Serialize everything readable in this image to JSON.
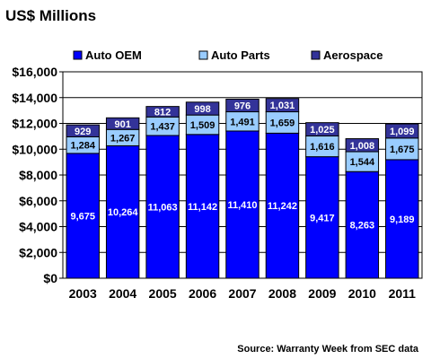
{
  "chart_data": {
    "type": "bar",
    "stacked": true,
    "title": "US$ Millions",
    "source": "Source: Warranty Week from SEC data",
    "categories": [
      "2003",
      "2004",
      "2005",
      "2006",
      "2007",
      "2008",
      "2009",
      "2010",
      "2011"
    ],
    "series": [
      {
        "name": "Auto OEM",
        "color": "#0000ff",
        "label_color": "#ffffff",
        "values": [
          9675,
          10264,
          11063,
          11142,
          11410,
          11242,
          9417,
          8263,
          9189
        ],
        "labels": [
          "9,675",
          "10,264",
          "11,063",
          "11,142",
          "11,410",
          "11,242",
          "9,417",
          "8,263",
          "9,189"
        ]
      },
      {
        "name": "Auto Parts",
        "color": "#99ccff",
        "label_color": "#000000",
        "values": [
          1284,
          1267,
          1437,
          1509,
          1491,
          1659,
          1616,
          1544,
          1675
        ],
        "labels": [
          "1,284",
          "1,267",
          "1,437",
          "1,509",
          "1,491",
          "1,659",
          "1,616",
          "1,544",
          "1,675"
        ]
      },
      {
        "name": "Aerospace",
        "color": "#333399",
        "label_color": "#ffffff",
        "values": [
          929,
          901,
          812,
          998,
          976,
          1031,
          1025,
          1008,
          1099
        ],
        "labels": [
          "929",
          "901",
          "812",
          "998",
          "976",
          "1,031",
          "1,025",
          "1,008",
          "1,099"
        ]
      }
    ],
    "ylim": [
      0,
      16000
    ],
    "yticks": [
      0,
      2000,
      4000,
      6000,
      8000,
      10000,
      12000,
      14000,
      16000
    ],
    "ytick_labels": [
      "$0",
      "$2,000",
      "$4,000",
      "$6,000",
      "$8,000",
      "$10,000",
      "$12,000",
      "$14,000",
      "$16,000"
    ],
    "grid": true,
    "plot_background": "#ffffff",
    "legend": "top"
  }
}
